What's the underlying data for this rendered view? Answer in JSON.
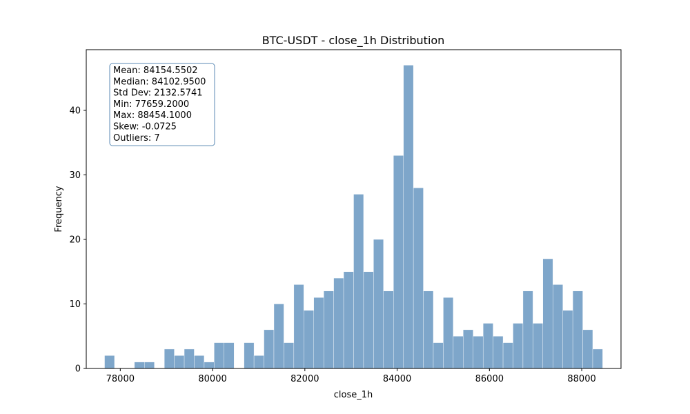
{
  "chart_data": {
    "type": "bar",
    "title": "BTC-USDT - close_1h Distribution",
    "xlabel": "close_1h",
    "ylabel": "Frequency",
    "xlim": [
      77262.5,
      88851.3
    ],
    "ylim": [
      0,
      49.4
    ],
    "x_ticks": [
      78000,
      80000,
      82000,
      84000,
      86000,
      88000
    ],
    "y_ticks": [
      0,
      10,
      20,
      30,
      40
    ],
    "bin_min": 77659.2,
    "bin_width": 215.9,
    "counts": [
      2,
      0,
      0,
      1,
      1,
      0,
      3,
      2,
      3,
      2,
      1,
      4,
      4,
      0,
      4,
      2,
      6,
      10,
      4,
      13,
      9,
      11,
      12,
      14,
      15,
      27,
      15,
      20,
      12,
      33,
      47,
      28,
      12,
      4,
      11,
      5,
      6,
      5,
      7,
      5,
      4,
      7,
      12,
      7,
      17,
      13,
      9,
      12,
      6,
      3
    ],
    "bar_color": "#7ea6ca",
    "grid": false,
    "stats": {
      "lines": [
        "Mean: 84154.5502",
        "Median: 84102.9500",
        "Std Dev: 2132.5741",
        "Min: 77659.2000",
        "Max: 88454.1000",
        "Skew: -0.0725",
        "Outliers: 7"
      ],
      "border_color": "#5b8ab4"
    }
  }
}
